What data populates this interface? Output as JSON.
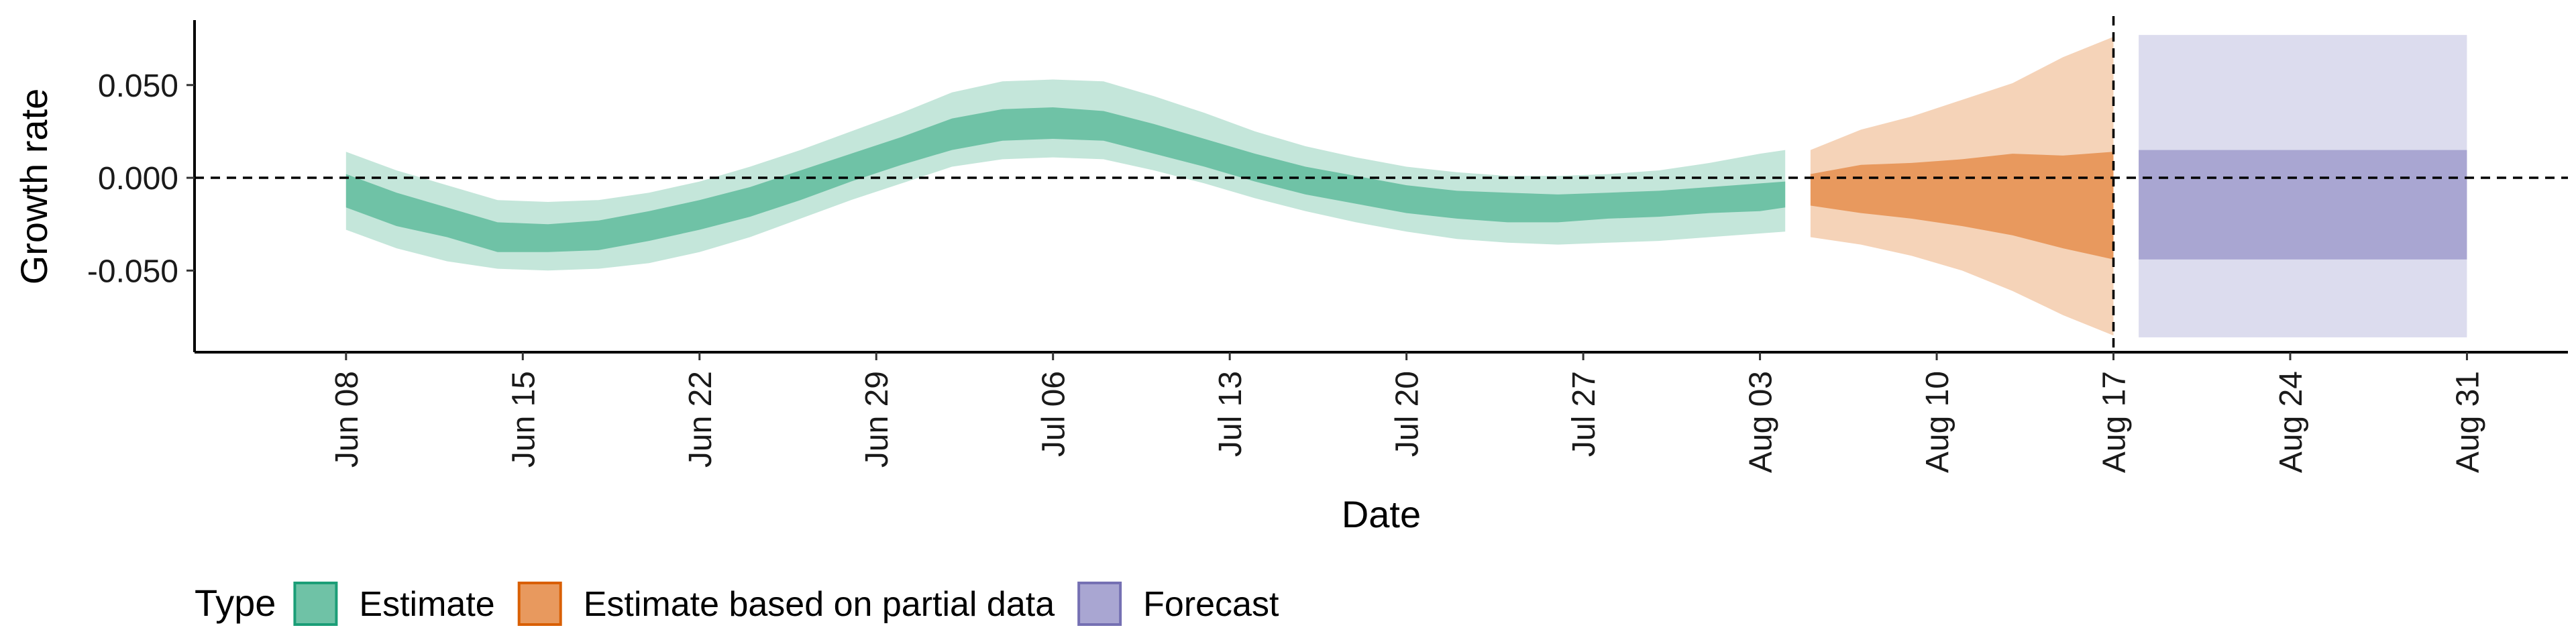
{
  "chart_data": {
    "type": "area",
    "title": "",
    "xlabel": "Date",
    "ylabel": "Growth rate",
    "x_range": [
      "2020-06-02",
      "2020-09-04"
    ],
    "ylim": [
      -0.094,
      0.085
    ],
    "y_ticks": [
      {
        "value": 0.05,
        "label": "0.050"
      },
      {
        "value": 0.0,
        "label": "0.000"
      },
      {
        "value": -0.05,
        "label": "-0.050"
      }
    ],
    "x_ticks": [
      {
        "date": "2020-06-08",
        "label": "Jun 08"
      },
      {
        "date": "2020-06-15",
        "label": "Jun 15"
      },
      {
        "date": "2020-06-22",
        "label": "Jun 22"
      },
      {
        "date": "2020-06-29",
        "label": "Jun 29"
      },
      {
        "date": "2020-07-06",
        "label": "Jul 06"
      },
      {
        "date": "2020-07-13",
        "label": "Jul 13"
      },
      {
        "date": "2020-07-20",
        "label": "Jul 20"
      },
      {
        "date": "2020-07-27",
        "label": "Jul 27"
      },
      {
        "date": "2020-08-03",
        "label": "Aug 03"
      },
      {
        "date": "2020-08-10",
        "label": "Aug 10"
      },
      {
        "date": "2020-08-17",
        "label": "Aug 17"
      },
      {
        "date": "2020-08-24",
        "label": "Aug 24"
      },
      {
        "date": "2020-08-31",
        "label": "Aug 31"
      }
    ],
    "reference_lines": {
      "horizontal": 0.0,
      "vertical_date": "2020-08-17"
    },
    "grid": false,
    "legend": {
      "title": "Type",
      "position": "bottom-left"
    },
    "series": [
      {
        "name": "Estimate",
        "color": "#1b9e77",
        "fill": "#6fc2a6",
        "fill_light": "#c4e6da",
        "points": [
          {
            "date": "2020-06-08",
            "lo90": -0.028,
            "lo50": -0.016,
            "hi50": 0.002,
            "hi90": 0.014
          },
          {
            "date": "2020-06-10",
            "lo90": -0.038,
            "lo50": -0.026,
            "hi50": -0.008,
            "hi90": 0.004
          },
          {
            "date": "2020-06-12",
            "lo90": -0.045,
            "lo50": -0.032,
            "hi50": -0.016,
            "hi90": -0.004
          },
          {
            "date": "2020-06-14",
            "lo90": -0.049,
            "lo50": -0.04,
            "hi50": -0.024,
            "hi90": -0.012
          },
          {
            "date": "2020-06-16",
            "lo90": -0.05,
            "lo50": -0.04,
            "hi50": -0.025,
            "hi90": -0.013
          },
          {
            "date": "2020-06-18",
            "lo90": -0.049,
            "lo50": -0.039,
            "hi50": -0.023,
            "hi90": -0.012
          },
          {
            "date": "2020-06-20",
            "lo90": -0.046,
            "lo50": -0.034,
            "hi50": -0.018,
            "hi90": -0.008
          },
          {
            "date": "2020-06-22",
            "lo90": -0.04,
            "lo50": -0.028,
            "hi50": -0.012,
            "hi90": -0.002
          },
          {
            "date": "2020-06-24",
            "lo90": -0.032,
            "lo50": -0.021,
            "hi50": -0.005,
            "hi90": 0.006
          },
          {
            "date": "2020-06-26",
            "lo90": -0.022,
            "lo50": -0.012,
            "hi50": 0.004,
            "hi90": 0.015
          },
          {
            "date": "2020-06-28",
            "lo90": -0.012,
            "lo50": -0.002,
            "hi50": 0.013,
            "hi90": 0.025
          },
          {
            "date": "2020-06-30",
            "lo90": -0.003,
            "lo50": 0.007,
            "hi50": 0.022,
            "hi90": 0.035
          },
          {
            "date": "2020-07-02",
            "lo90": 0.006,
            "lo50": 0.015,
            "hi50": 0.032,
            "hi90": 0.046
          },
          {
            "date": "2020-07-04",
            "lo90": 0.01,
            "lo50": 0.02,
            "hi50": 0.037,
            "hi90": 0.052
          },
          {
            "date": "2020-07-06",
            "lo90": 0.011,
            "lo50": 0.021,
            "hi50": 0.038,
            "hi90": 0.053
          },
          {
            "date": "2020-07-08",
            "lo90": 0.01,
            "lo50": 0.02,
            "hi50": 0.036,
            "hi90": 0.052
          },
          {
            "date": "2020-07-10",
            "lo90": 0.004,
            "lo50": 0.013,
            "hi50": 0.029,
            "hi90": 0.044
          },
          {
            "date": "2020-07-12",
            "lo90": -0.003,
            "lo50": 0.006,
            "hi50": 0.021,
            "hi90": 0.035
          },
          {
            "date": "2020-07-14",
            "lo90": -0.011,
            "lo50": -0.002,
            "hi50": 0.013,
            "hi90": 0.025
          },
          {
            "date": "2020-07-16",
            "lo90": -0.018,
            "lo50": -0.009,
            "hi50": 0.006,
            "hi90": 0.017
          },
          {
            "date": "2020-07-18",
            "lo90": -0.024,
            "lo50": -0.014,
            "hi50": 0.001,
            "hi90": 0.011
          },
          {
            "date": "2020-07-20",
            "lo90": -0.029,
            "lo50": -0.019,
            "hi50": -0.004,
            "hi90": 0.006
          },
          {
            "date": "2020-07-22",
            "lo90": -0.033,
            "lo50": -0.022,
            "hi50": -0.007,
            "hi90": 0.003
          },
          {
            "date": "2020-07-24",
            "lo90": -0.035,
            "lo50": -0.024,
            "hi50": -0.008,
            "hi90": 0.001
          },
          {
            "date": "2020-07-26",
            "lo90": -0.036,
            "lo50": -0.024,
            "hi50": -0.009,
            "hi90": 0.001
          },
          {
            "date": "2020-07-28",
            "lo90": -0.035,
            "lo50": -0.022,
            "hi50": -0.008,
            "hi90": 0.002
          },
          {
            "date": "2020-07-30",
            "lo90": -0.034,
            "lo50": -0.021,
            "hi50": -0.007,
            "hi90": 0.004
          },
          {
            "date": "2020-08-01",
            "lo90": -0.032,
            "lo50": -0.019,
            "hi50": -0.005,
            "hi90": 0.008
          },
          {
            "date": "2020-08-03",
            "lo90": -0.03,
            "lo50": -0.018,
            "hi50": -0.003,
            "hi90": 0.013
          },
          {
            "date": "2020-08-04",
            "lo90": -0.029,
            "lo50": -0.016,
            "hi50": -0.002,
            "hi90": 0.015
          }
        ]
      },
      {
        "name": "Estimate based on partial data",
        "color": "#d95f02",
        "fill": "#e8995e",
        "fill_light": "#f5d3b8",
        "points": [
          {
            "date": "2020-08-05",
            "lo90": -0.032,
            "lo50": -0.015,
            "hi50": 0.002,
            "hi90": 0.015
          },
          {
            "date": "2020-08-07",
            "lo90": -0.036,
            "lo50": -0.019,
            "hi50": 0.007,
            "hi90": 0.026
          },
          {
            "date": "2020-08-09",
            "lo90": -0.042,
            "lo50": -0.022,
            "hi50": 0.008,
            "hi90": 0.033
          },
          {
            "date": "2020-08-11",
            "lo90": -0.05,
            "lo50": -0.026,
            "hi50": 0.01,
            "hi90": 0.042
          },
          {
            "date": "2020-08-13",
            "lo90": -0.061,
            "lo50": -0.031,
            "hi50": 0.013,
            "hi90": 0.051
          },
          {
            "date": "2020-08-15",
            "lo90": -0.074,
            "lo50": -0.038,
            "hi50": 0.012,
            "hi90": 0.065
          },
          {
            "date": "2020-08-17",
            "lo90": -0.085,
            "lo50": -0.044,
            "hi50": 0.014,
            "hi90": 0.076
          }
        ]
      },
      {
        "name": "Forecast",
        "color": "#7570b3",
        "fill": "#a9a6d2",
        "fill_light": "#dcdcee",
        "points": [
          {
            "date": "2020-08-18",
            "lo90": -0.086,
            "lo50": -0.044,
            "hi50": 0.015,
            "hi90": 0.077
          },
          {
            "date": "2020-08-31",
            "lo90": -0.086,
            "lo50": -0.044,
            "hi50": 0.015,
            "hi90": 0.077
          }
        ]
      }
    ]
  }
}
